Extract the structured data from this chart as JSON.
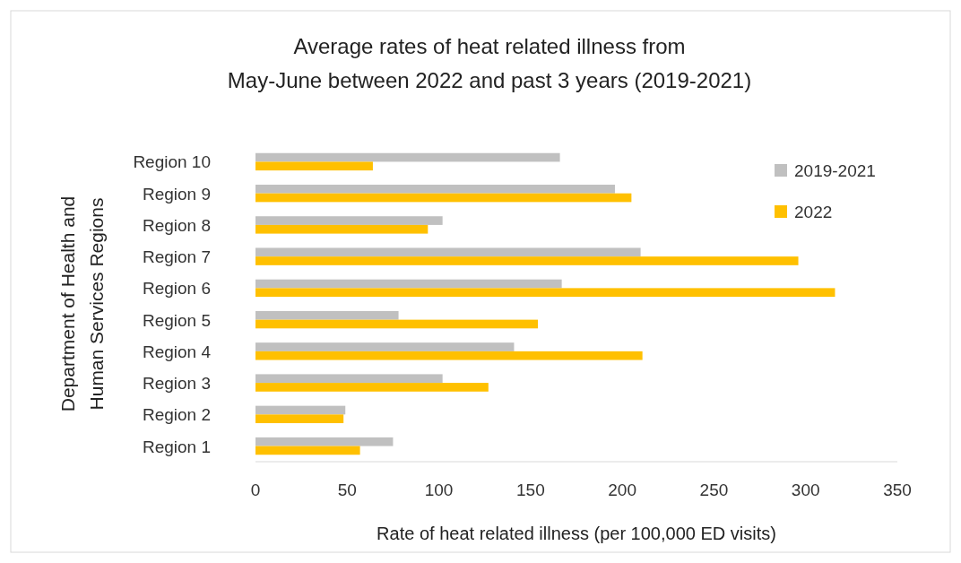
{
  "chart_data": {
    "type": "bar",
    "orientation": "horizontal",
    "title": "Average rates of heat related illness from May-June between 2022 and past 3 years (2019-2021)",
    "xlabel": "Rate of heat related illness (per 100,000 ED visits)",
    "ylabel": "Department of Health and Human Services Regions",
    "categories": [
      "Region 10",
      "Region 9",
      "Region 8",
      "Region 7",
      "Region 6",
      "Region 5",
      "Region 4",
      "Region 3",
      "Region 2",
      "Region 1"
    ],
    "series": [
      {
        "name": "2019-2021",
        "color": "#c0c0c0",
        "values": [
          166,
          196,
          102,
          210,
          167,
          78,
          141,
          102,
          49,
          75
        ]
      },
      {
        "name": "2022",
        "color": "#ffc000",
        "values": [
          64,
          205,
          94,
          296,
          316,
          154,
          211,
          127,
          48,
          57
        ]
      }
    ],
    "xlim": [
      0,
      350
    ],
    "xticks": [
      0,
      50,
      100,
      150,
      200,
      250,
      300,
      350
    ],
    "grid": false,
    "legend": "top right"
  }
}
